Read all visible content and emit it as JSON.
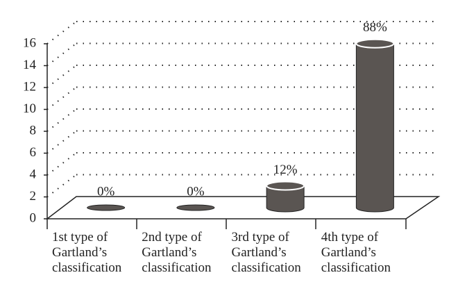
{
  "chart_data": {
    "type": "bar",
    "categories": [
      "1st type of Gartland’s classification",
      "2nd type of Gartland’s classification",
      "3rd type of Gartland’s classification",
      "4th type of Gartland’s classification"
    ],
    "values": [
      0,
      0,
      2,
      15
    ],
    "value_labels": [
      "0%",
      "0%",
      "12%",
      "88%"
    ],
    "color": "#5a5552",
    "ylim": [
      0,
      16
    ],
    "yticks": [
      0,
      2,
      4,
      6,
      8,
      10,
      12,
      14,
      16
    ],
    "grid": true
  }
}
